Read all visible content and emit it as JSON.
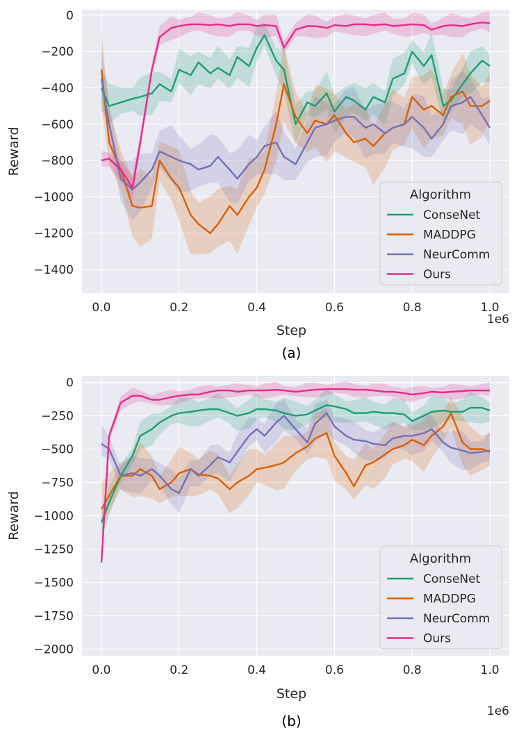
{
  "chart_data": [
    {
      "type": "line",
      "caption": "(a)",
      "xlabel": "Step",
      "ylabel": "Reward",
      "x_offset_label": "1e6",
      "xlim": [
        -0.05,
        1.05
      ],
      "ylim": [
        -1530,
        30
      ],
      "xticks": [
        0.0,
        0.2,
        0.4,
        0.6,
        0.8,
        1.0
      ],
      "xtick_labels": [
        "0.0",
        "0.2",
        "0.4",
        "0.6",
        "0.8",
        "1.0"
      ],
      "yticks": [
        0,
        -200,
        -400,
        -600,
        -800,
        -1000,
        -1200,
        -1400
      ],
      "ytick_labels": [
        "0",
        "−200",
        "−400",
        "−600",
        "−800",
        "−1000",
        "−1200",
        "−1400"
      ],
      "legend": {
        "title": "Algorithm",
        "position": "lower-right"
      },
      "x": [
        0.0,
        0.02,
        0.05,
        0.08,
        0.1,
        0.13,
        0.15,
        0.18,
        0.2,
        0.23,
        0.25,
        0.28,
        0.3,
        0.33,
        0.35,
        0.38,
        0.4,
        0.42,
        0.45,
        0.47,
        0.5,
        0.53,
        0.55,
        0.58,
        0.6,
        0.63,
        0.65,
        0.68,
        0.7,
        0.73,
        0.75,
        0.78,
        0.8,
        0.83,
        0.85,
        0.88,
        0.9,
        0.93,
        0.95,
        0.98,
        1.0
      ],
      "series": [
        {
          "name": "ConseNet",
          "color": "#1b9e77",
          "band": 90,
          "values": [
            -400,
            -500,
            -480,
            -460,
            -450,
            -430,
            -380,
            -420,
            -300,
            -330,
            -260,
            -320,
            -290,
            -330,
            -230,
            -280,
            -180,
            -110,
            -250,
            -300,
            -600,
            -480,
            -500,
            -430,
            -530,
            -450,
            -470,
            -520,
            -450,
            -480,
            -350,
            -320,
            -200,
            -280,
            -220,
            -500,
            -470,
            -380,
            -320,
            -250,
            -280
          ]
        },
        {
          "name": "MADDPG",
          "color": "#d95f02",
          "band": 160,
          "values": [
            -300,
            -700,
            -850,
            -1050,
            -1060,
            -1050,
            -800,
            -900,
            -950,
            -1100,
            -1150,
            -1200,
            -1150,
            -1050,
            -1100,
            -1000,
            -950,
            -850,
            -600,
            -380,
            -560,
            -650,
            -580,
            -600,
            -550,
            -650,
            -700,
            -680,
            -720,
            -650,
            -620,
            -600,
            -450,
            -520,
            -500,
            -550,
            -450,
            -420,
            -500,
            -500,
            -470
          ]
        },
        {
          "name": "NeurComm",
          "color": "#7570b3",
          "band": 130,
          "values": [
            -350,
            -600,
            -900,
            -960,
            -920,
            -850,
            -750,
            -780,
            -800,
            -820,
            -850,
            -830,
            -780,
            -850,
            -900,
            -820,
            -780,
            -720,
            -700,
            -780,
            -820,
            -700,
            -620,
            -600,
            -580,
            -560,
            -560,
            -620,
            -600,
            -650,
            -620,
            -600,
            -560,
            -620,
            -680,
            -600,
            -500,
            -480,
            -450,
            -550,
            -620
          ]
        },
        {
          "name": "Ours",
          "color": "#e7298a",
          "band": 50,
          "values": [
            -800,
            -790,
            -850,
            -950,
            -700,
            -300,
            -120,
            -70,
            -60,
            -50,
            -50,
            -55,
            -50,
            -60,
            -50,
            -50,
            -60,
            -55,
            -60,
            -180,
            -80,
            -60,
            -60,
            -70,
            -55,
            -60,
            -50,
            -50,
            -55,
            -50,
            -60,
            -55,
            -50,
            -55,
            -80,
            -60,
            -55,
            -60,
            -50,
            -40,
            -45
          ]
        }
      ]
    },
    {
      "type": "line",
      "caption": "(b)",
      "xlabel": "Step",
      "ylabel": "Reward",
      "x_offset_label": "1e6",
      "xlim": [
        -0.05,
        1.05
      ],
      "ylim": [
        -2050,
        50
      ],
      "xticks": [
        0.0,
        0.2,
        0.4,
        0.6,
        0.8,
        1.0
      ],
      "xtick_labels": [
        "0.0",
        "0.2",
        "0.4",
        "0.6",
        "0.8",
        "1.0"
      ],
      "yticks": [
        0,
        -250,
        -500,
        -750,
        -1000,
        -1250,
        -1500,
        -1750,
        -2000
      ],
      "ytick_labels": [
        "0",
        "−250",
        "−500",
        "−750",
        "−1000",
        "−1250",
        "−1500",
        "−1750",
        "−2000"
      ],
      "legend": {
        "title": "Algorithm",
        "position": "lower-right"
      },
      "x": [
        0.0,
        0.02,
        0.05,
        0.08,
        0.1,
        0.13,
        0.15,
        0.18,
        0.2,
        0.23,
        0.25,
        0.28,
        0.3,
        0.33,
        0.35,
        0.38,
        0.4,
        0.42,
        0.45,
        0.47,
        0.5,
        0.53,
        0.55,
        0.58,
        0.6,
        0.63,
        0.65,
        0.68,
        0.7,
        0.73,
        0.75,
        0.78,
        0.8,
        0.83,
        0.85,
        0.88,
        0.9,
        0.93,
        0.95,
        0.98,
        1.0
      ],
      "series": [
        {
          "name": "ConseNet",
          "color": "#1b9e77",
          "band": 90,
          "values": [
            -1050,
            -900,
            -700,
            -550,
            -400,
            -350,
            -300,
            -250,
            -230,
            -220,
            -210,
            -200,
            -200,
            -230,
            -250,
            -230,
            -200,
            -200,
            -210,
            -230,
            -250,
            -240,
            -210,
            -170,
            -180,
            -200,
            -230,
            -230,
            -220,
            -230,
            -230,
            -240,
            -290,
            -250,
            -220,
            -210,
            -220,
            -220,
            -190,
            -190,
            -210
          ]
        },
        {
          "name": "MADDPG",
          "color": "#d95f02",
          "band": 150,
          "values": [
            -950,
            -850,
            -700,
            -700,
            -650,
            -700,
            -800,
            -750,
            -680,
            -650,
            -690,
            -700,
            -720,
            -800,
            -750,
            -700,
            -650,
            -640,
            -620,
            -600,
            -530,
            -480,
            -420,
            -380,
            -550,
            -680,
            -780,
            -620,
            -600,
            -540,
            -500,
            -470,
            -430,
            -470,
            -400,
            -330,
            -230,
            -450,
            -500,
            -500,
            -520
          ]
        },
        {
          "name": "NeurComm",
          "color": "#7570b3",
          "band": 110,
          "values": [
            -460,
            -500,
            -700,
            -680,
            -700,
            -650,
            -700,
            -800,
            -830,
            -650,
            -700,
            -620,
            -560,
            -600,
            -520,
            -400,
            -350,
            -400,
            -300,
            -250,
            -350,
            -450,
            -310,
            -230,
            -330,
            -400,
            -430,
            -440,
            -460,
            -470,
            -420,
            -400,
            -400,
            -380,
            -350,
            -450,
            -490,
            -510,
            -530,
            -520,
            -510
          ]
        },
        {
          "name": "Ours",
          "color": "#e7298a",
          "band": 45,
          "values": [
            -1350,
            -400,
            -150,
            -100,
            -100,
            -130,
            -130,
            -110,
            -100,
            -90,
            -90,
            -70,
            -60,
            -60,
            -70,
            -60,
            -60,
            -60,
            -55,
            -60,
            -70,
            -60,
            -55,
            -50,
            -50,
            -50,
            -55,
            -55,
            -60,
            -70,
            -70,
            -80,
            -90,
            -80,
            -70,
            -75,
            -70,
            -65,
            -60,
            -60,
            -60
          ]
        }
      ]
    }
  ]
}
